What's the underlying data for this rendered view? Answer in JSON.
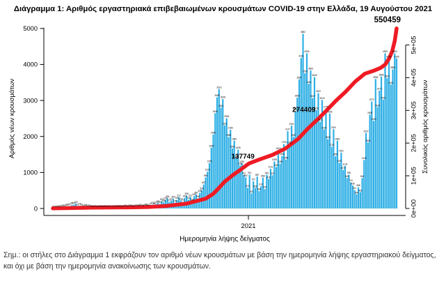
{
  "title": "Διάγραμμα 1: Αριθμός εργαστηριακά επιβεβαιωμένων κρουσμάτων COVID-19 στην Ελλάδα, 19 Αυγούστου 2021",
  "footnote": "Σημ.: οι στήλες στο Διάγραμμα 1 εκφράζουν τον αριθμό νέων κρουσμάτων με βάση την ημερομηνία λήψης εργαστηριακού δείγματος, και όχι με βάση την ημερομηνία ανακοίνωσης των κρουσμάτων.",
  "chart_data": {
    "type": "bar",
    "title": "",
    "xlabel": "Ημερομηνία λήψης δείγματος",
    "ylabel_left": "Αριθμός νέων κρουσμάτων",
    "ylabel_right": "Συνολικός αριθμός κρουσμάτων",
    "x_tick_labels": [
      "2021"
    ],
    "y_left_ticks": [
      0,
      1000,
      2000,
      3000,
      4000,
      5000
    ],
    "y_right_ticks": [
      "0e+00",
      "1e+05",
      "2e+05",
      "3e+05",
      "4e+05",
      "5e+05"
    ],
    "ylim_left": [
      0,
      5000
    ],
    "ylim_right": [
      0,
      500000
    ],
    "grid": false,
    "bar_color": "#2eafe5",
    "line_color": "#ee1b24",
    "days_span": 540,
    "new_cases": {
      "sample_interval_days": 3,
      "values": [
        3,
        4,
        10,
        15,
        21,
        35,
        31,
        48,
        56,
        71,
        95,
        102,
        129,
        60,
        77,
        56,
        33,
        46,
        32,
        28,
        19,
        12,
        24,
        16,
        10,
        22,
        15,
        18,
        11,
        21,
        12,
        9,
        19,
        14,
        25,
        18,
        11,
        23,
        29,
        20,
        28,
        34,
        24,
        31,
        43,
        28,
        50,
        35,
        48,
        58,
        45,
        77,
        110,
        86,
        121,
        151,
        124,
        203,
        168,
        235,
        284,
        177,
        217,
        269,
        158,
        240,
        312,
        218,
        177,
        293,
        358,
        243,
        312,
        196,
        342,
        390,
        280,
        438,
        508,
        667,
        865,
        1024,
        1259,
        1690,
        2056,
        2648,
        3089,
        3316,
        2804,
        3038,
        2311,
        2506,
        1985,
        2186,
        1667,
        1882,
        1395,
        1636,
        1194,
        1254,
        931,
        862,
        574,
        941,
        420,
        757,
        566,
        887,
        484,
        619,
        858,
        541,
        935,
        816,
        1101,
        923,
        1305,
        1151,
        1618,
        1248,
        1460,
        1790,
        1356,
        2147,
        1783,
        2301,
        1987,
        2702,
        3080,
        3587,
        4181,
        4852,
        3756,
        4309,
        3461,
        3833,
        3067,
        3649,
        2731,
        3202,
        2411,
        3015,
        2194,
        2775,
        1926,
        2636,
        1716,
        2204,
        1450,
        1881,
        1267,
        1551,
        1072,
        1178,
        849,
        938,
        724,
        638,
        512,
        394,
        588,
        452,
        846,
        1348,
        2097,
        1834,
        2605,
        2972,
        2433,
        3596,
        2814,
        3272,
        3665,
        3023,
        4309,
        3622,
        4165,
        3442,
        3863,
        4309,
        4165
      ]
    },
    "cumulative": {
      "points": [
        [
          0,
          500
        ],
        [
          60,
          2600
        ],
        [
          120,
          3400
        ],
        [
          150,
          4500
        ],
        [
          180,
          8000
        ],
        [
          210,
          15000
        ],
        [
          240,
          30000
        ],
        [
          252,
          45000
        ],
        [
          261,
          63000
        ],
        [
          270,
          82000
        ],
        [
          282,
          101000
        ],
        [
          295,
          119000
        ],
        [
          308,
          137749
        ],
        [
          325,
          150000
        ],
        [
          345,
          164000
        ],
        [
          365,
          183000
        ],
        [
          385,
          212000
        ],
        [
          400,
          243000
        ],
        [
          417,
          274409
        ],
        [
          430,
          300000
        ],
        [
          445,
          330000
        ],
        [
          460,
          357000
        ],
        [
          475,
          388000
        ],
        [
          490,
          412000
        ],
        [
          505,
          422000
        ],
        [
          515,
          430000
        ],
        [
          522,
          440000
        ],
        [
          528,
          458000
        ],
        [
          533,
          480000
        ],
        [
          537,
          512000
        ],
        [
          540,
          550459
        ]
      ]
    },
    "annotations": [
      {
        "label": "137749",
        "day": 308,
        "value": 137749
      },
      {
        "label": "274409",
        "day": 417,
        "value": 274409
      },
      {
        "label": "550459",
        "day": 540,
        "value": 550459
      }
    ]
  }
}
